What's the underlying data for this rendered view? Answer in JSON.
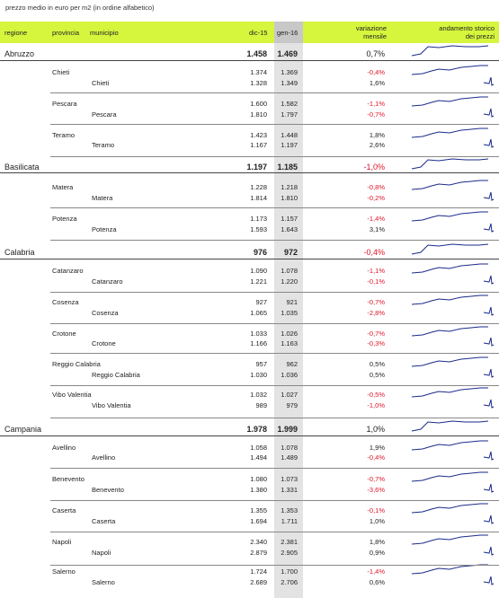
{
  "caption": "prezzo medio in euro per m2 (in ordine alfabetico)",
  "headers": {
    "regione": "regione",
    "provincia": "provincia",
    "municipio": "municipio",
    "col1": "dic-15",
    "col2": "gen-16",
    "variazione_1": "variazione",
    "variazione_2": "mensile",
    "andamento_1": "andamento storico",
    "andamento_2": "dei prezzi"
  },
  "colors": {
    "header": "#d6f53d",
    "highlight_column": "#e3e3e3",
    "negative": "#e0142a",
    "sparkline": "#1a2a8a"
  },
  "chart_data": {
    "type": "table",
    "columns": [
      "regione",
      "provincia",
      "municipio",
      "dic-15",
      "gen-16",
      "variazione mensile",
      "andamento storico dei prezzi"
    ],
    "rows": [
      {
        "level": "regione",
        "name": "Abruzzo",
        "dic15": "1.458",
        "gen16": "1.469",
        "var": "0,7%"
      },
      {
        "level": "provincia",
        "name": "Chieti",
        "dic15": "1.374",
        "gen16": "1.369",
        "var": "-0,4%"
      },
      {
        "level": "municipio",
        "name": "Chieti",
        "dic15": "1.328",
        "gen16": "1.349",
        "var": "1,6%"
      },
      {
        "level": "provincia",
        "name": "Pescara",
        "dic15": "1.600",
        "gen16": "1.582",
        "var": "-1,1%"
      },
      {
        "level": "municipio",
        "name": "Pescara",
        "dic15": "1.810",
        "gen16": "1.797",
        "var": "-0,7%"
      },
      {
        "level": "provincia",
        "name": "Teramo",
        "dic15": "1.423",
        "gen16": "1.448",
        "var": "1,8%"
      },
      {
        "level": "municipio",
        "name": "Teramo",
        "dic15": "1.167",
        "gen16": "1.197",
        "var": "2,6%"
      },
      {
        "level": "regione",
        "name": "Basilicata",
        "dic15": "1.197",
        "gen16": "1.185",
        "var": "-1,0%"
      },
      {
        "level": "provincia",
        "name": "Matera",
        "dic15": "1.228",
        "gen16": "1.218",
        "var": "-0,8%"
      },
      {
        "level": "municipio",
        "name": "Matera",
        "dic15": "1.814",
        "gen16": "1.810",
        "var": "-0,2%"
      },
      {
        "level": "provincia",
        "name": "Potenza",
        "dic15": "1.173",
        "gen16": "1.157",
        "var": "-1,4%"
      },
      {
        "level": "municipio",
        "name": "Potenza",
        "dic15": "1.593",
        "gen16": "1.643",
        "var": "3,1%"
      },
      {
        "level": "regione",
        "name": "Calabria",
        "dic15": "976",
        "gen16": "972",
        "var": "-0,4%"
      },
      {
        "level": "provincia",
        "name": "Catanzaro",
        "dic15": "1.090",
        "gen16": "1.078",
        "var": "-1,1%"
      },
      {
        "level": "municipio",
        "name": "Catanzaro",
        "dic15": "1.221",
        "gen16": "1.220",
        "var": "-0,1%"
      },
      {
        "level": "provincia",
        "name": "Cosenza",
        "dic15": "927",
        "gen16": "921",
        "var": "-0,7%"
      },
      {
        "level": "municipio",
        "name": "Cosenza",
        "dic15": "1.065",
        "gen16": "1.035",
        "var": "-2,8%"
      },
      {
        "level": "provincia",
        "name": "Crotone",
        "dic15": "1.033",
        "gen16": "1.026",
        "var": "-0,7%"
      },
      {
        "level": "municipio",
        "name": "Crotone",
        "dic15": "1.166",
        "gen16": "1.163",
        "var": "-0,3%"
      },
      {
        "level": "provincia",
        "name": "Reggio Calabria",
        "dic15": "957",
        "gen16": "962",
        "var": "0,5%"
      },
      {
        "level": "municipio",
        "name": "Reggio Calabria",
        "dic15": "1.030",
        "gen16": "1.036",
        "var": "0,5%"
      },
      {
        "level": "provincia",
        "name": "Vibo Valentia",
        "dic15": "1.032",
        "gen16": "1.027",
        "var": "-0,5%"
      },
      {
        "level": "municipio",
        "name": "Vibo Valentia",
        "dic15": "989",
        "gen16": "979",
        "var": "-1,0%"
      },
      {
        "level": "regione",
        "name": "Campania",
        "dic15": "1.978",
        "gen16": "1.999",
        "var": "1,0%"
      },
      {
        "level": "provincia",
        "name": "Avellino",
        "dic15": "1.058",
        "gen16": "1.078",
        "var": "1,9%"
      },
      {
        "level": "municipio",
        "name": "Avellino",
        "dic15": "1.494",
        "gen16": "1.489",
        "var": "-0,4%"
      },
      {
        "level": "provincia",
        "name": "Benevento",
        "dic15": "1.080",
        "gen16": "1.073",
        "var": "-0,7%"
      },
      {
        "level": "municipio",
        "name": "Benevento",
        "dic15": "1.380",
        "gen16": "1.331",
        "var": "-3,6%"
      },
      {
        "level": "provincia",
        "name": "Caserta",
        "dic15": "1.355",
        "gen16": "1.353",
        "var": "-0,1%"
      },
      {
        "level": "municipio",
        "name": "Caserta",
        "dic15": "1.694",
        "gen16": "1.711",
        "var": "1,0%"
      },
      {
        "level": "provincia",
        "name": "Napoli",
        "dic15": "2.340",
        "gen16": "2.381",
        "var": "1,8%"
      },
      {
        "level": "municipio",
        "name": "Napoli",
        "dic15": "2.879",
        "gen16": "2.905",
        "var": "0,9%"
      },
      {
        "level": "provincia",
        "name": "Salerno",
        "dic15": "1.724",
        "gen16": "1.700",
        "var": "-1,4%"
      },
      {
        "level": "municipio",
        "name": "Salerno",
        "dic15": "2.689",
        "gen16": "2.706",
        "var": "0,6%"
      }
    ]
  }
}
